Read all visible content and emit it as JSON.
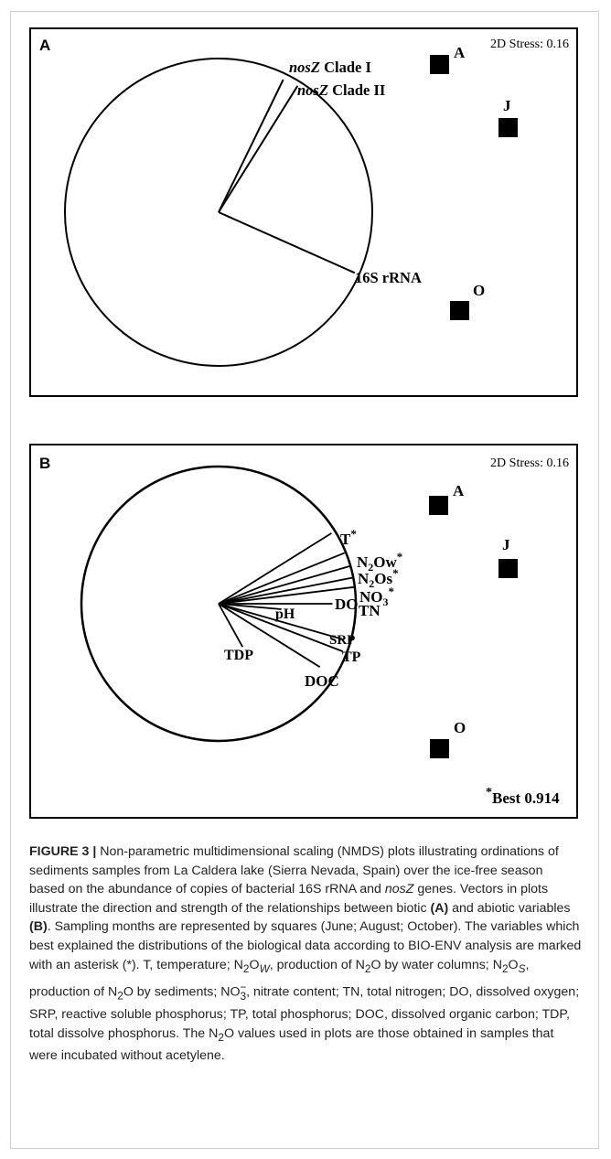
{
  "chart_data": [
    {
      "type": "scatter",
      "panel_label": "A",
      "stress": "2D Stress: 0.16",
      "points": [
        {
          "label": "A"
        },
        {
          "label": "J"
        },
        {
          "label": "O"
        }
      ],
      "vectors": [
        {
          "name_italic": "nosZ",
          "name_rest": " Clade I",
          "angle_deg": 64,
          "length": 0.96
        },
        {
          "name_italic": "nosZ",
          "name_rest": " Clade II",
          "angle_deg": 58,
          "length": 0.97
        },
        {
          "name_italic": "",
          "name_rest": "16S rRNA",
          "angle_deg": -24,
          "length": 0.97
        }
      ]
    },
    {
      "type": "scatter",
      "panel_label": "B",
      "stress": "2D Stress: 0.16",
      "points": [
        {
          "label": "A"
        },
        {
          "label": "J"
        },
        {
          "label": "O"
        }
      ],
      "vectors": [
        {
          "main": "T",
          "sub": "",
          "tail": "",
          "star": true,
          "angle_deg": 32,
          "length": 0.97
        },
        {
          "main": "N",
          "sub": "2",
          "tail": "Ow",
          "star": true,
          "angle_deg": 22,
          "length": 0.99
        },
        {
          "main": "N",
          "sub": "2",
          "tail": "Os",
          "star": true,
          "angle_deg": 16,
          "length": 1.0
        },
        {
          "main": "NO",
          "sub": "3",
          "tail": "",
          "star": true,
          "angle_deg": 11,
          "length": 1.0
        },
        {
          "main": "TN",
          "sub": "",
          "tail": "",
          "star": false,
          "angle_deg": 7,
          "length": 1.0
        },
        {
          "main": "DO",
          "sub": "",
          "tail": "",
          "star": false,
          "angle_deg": 0,
          "length": 0.83
        },
        {
          "main": "pH",
          "sub": "",
          "tail": "",
          "star": false,
          "angle_deg": -5,
          "length": 0.46
        },
        {
          "main": "SRP",
          "sub": "",
          "tail": "",
          "star": false,
          "angle_deg": -16,
          "length": 0.95
        },
        {
          "main": "TP",
          "sub": "",
          "tail": "",
          "star": false,
          "angle_deg": -21,
          "length": 0.97
        },
        {
          "main": "DOC",
          "sub": "",
          "tail": "",
          "star": false,
          "angle_deg": -32,
          "length": 0.87
        },
        {
          "main": "TDP",
          "sub": "",
          "tail": "",
          "star": false,
          "angle_deg": -61,
          "length": 0.36
        }
      ],
      "annotation": {
        "star": "*",
        "text": "Best 0.914"
      }
    }
  ],
  "caption": {
    "fig_label": "FIGURE 3 |",
    "t1": " Non-parametric multidimensional scaling (NMDS) plots illustrating ordinations of sediments samples from La Caldera lake (Sierra Nevada, Spain) over the ice-free season based on the abundance of copies of bacterial 16S rRNA and ",
    "nosz": "nosZ",
    "t2": " genes. Vectors in plots illustrate the direction and strength of the relationships between biotic ",
    "a": "(A)",
    "t3": " and abiotic variables ",
    "b": "(B)",
    "t4": ". Sampling months are represented by squares (June; August; October). The variables which best explained the distributions of the biological data according to BIO-ENV analysis are marked with an asterisk (*). T, temperature; N",
    "sub2a": "2",
    "t5": "O",
    "subw": "W",
    "t6": ", production of N",
    "sub2b": "2",
    "t7": "O by water columns; N",
    "sub2c": "2",
    "t8": "O",
    "subs": "S",
    "t9": ", production of N",
    "sub2d": "2",
    "t10": "O by sediments; NO",
    "supminus": "−",
    "sub3": "3",
    "t11": ", nitrate content; TN, total nitrogen; DO, dissolved oxygen; SRP, reactive soluble phosphorus; TP, total phosphorus; DOC, dissolved organic carbon; TDP, total dissolve phosphorus. The N",
    "sub2e": "2",
    "t12": "O values used in plots are those obtained in samples that were incubated without acetylene."
  }
}
